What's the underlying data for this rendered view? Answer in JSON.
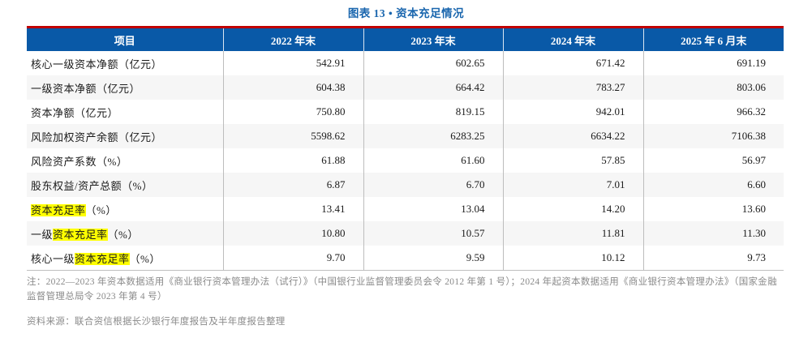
{
  "title": "图表 13 •  资本充足情况",
  "colors": {
    "header_bg": "#0959A7",
    "header_text": "#FFFFFF",
    "top_rule_red": "#C00000",
    "title_blue": "#1A66AE",
    "alt_row_bg": "#F6F6F6",
    "grid_line": "#BDBDBD",
    "highlight_yellow": "#FFFF00",
    "note_gray": "#8A8A8A"
  },
  "table": {
    "headers": [
      "项目",
      "2022 年末",
      "2023 年末",
      "2024 年末",
      "2025 年 6 月末"
    ],
    "rows": [
      {
        "label_pre": "核心一级资本净额（亿元）",
        "label_hl": "",
        "label_post": "",
        "values": [
          "542.91",
          "602.65",
          "671.42",
          "691.19"
        ]
      },
      {
        "label_pre": "一级资本净额（亿元）",
        "label_hl": "",
        "label_post": "",
        "values": [
          "604.38",
          "664.42",
          "783.27",
          "803.06"
        ]
      },
      {
        "label_pre": "资本净额（亿元）",
        "label_hl": "",
        "label_post": "",
        "values": [
          "750.80",
          "819.15",
          "942.01",
          "966.32"
        ]
      },
      {
        "label_pre": "风险加权资产余额（亿元）",
        "label_hl": "",
        "label_post": "",
        "values": [
          "5598.62",
          "6283.25",
          "6634.22",
          "7106.38"
        ]
      },
      {
        "label_pre": "风险资产系数（%）",
        "label_hl": "",
        "label_post": "",
        "values": [
          "61.88",
          "61.60",
          "57.85",
          "56.97"
        ]
      },
      {
        "label_pre": "股东权益/资产总额（%）",
        "label_hl": "",
        "label_post": "",
        "values": [
          "6.87",
          "6.70",
          "7.01",
          "6.60"
        ]
      },
      {
        "label_pre": "",
        "label_hl": "资本充足率",
        "label_post": "（%）",
        "values": [
          "13.41",
          "13.04",
          "14.20",
          "13.60"
        ]
      },
      {
        "label_pre": "一级",
        "label_hl": "资本充足率",
        "label_post": "（%）",
        "values": [
          "10.80",
          "10.57",
          "11.81",
          "11.30"
        ]
      },
      {
        "label_pre": "核心一级",
        "label_hl": "资本充足率",
        "label_post": "（%）",
        "values": [
          "9.70",
          "9.59",
          "10.12",
          "9.73"
        ]
      }
    ]
  },
  "note": "注：2022—2023 年资本数据适用《商业银行资本管理办法（试行）》（中国银行业监督管理委员会令 2012 年第 1 号）；2024 年起资本数据适用《商业银行资本管理办法》（国家金融监督管理总局令 2023 年第 4 号）",
  "source": "资料来源：联合资信根据长沙银行年度报告及半年度报告整理"
}
